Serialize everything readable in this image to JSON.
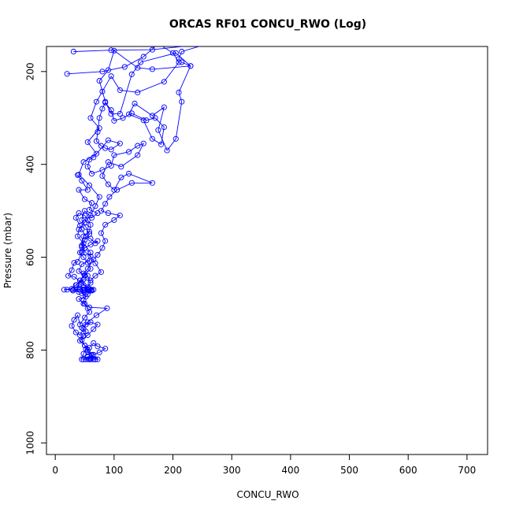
{
  "chart_data": {
    "type": "line",
    "title": "ORCAS RF01 CONCU_RWO (Log)",
    "xlabel": "CONCU_RWO",
    "ylabel": "Pressure (mbar)",
    "xlim": [
      -15,
      735
    ],
    "ylim": [
      1025,
      146
    ],
    "y_reversed": true,
    "grid": false,
    "marker": "open-circle",
    "series_color": "#0000ff",
    "x_ticks": [
      0,
      100,
      200,
      300,
      400,
      500,
      600,
      700
    ],
    "y_ticks": [
      200,
      400,
      600,
      800,
      1000
    ],
    "x_tick_labels": [
      "0",
      "100",
      "200",
      "300",
      "400",
      "500",
      "600",
      "700"
    ],
    "y_tick_labels": [
      "200",
      "400",
      "600",
      "800",
      "1000"
    ],
    "series": [
      {
        "points": [
          [
            31,
            157
          ],
          [
            95,
            154
          ],
          [
            165,
            153
          ],
          [
            260,
            140
          ],
          [
            215,
            157
          ],
          [
            210,
            173
          ],
          [
            215,
            180
          ],
          [
            230,
            188
          ],
          [
            165,
            195
          ],
          [
            140,
            192
          ],
          [
            100,
            155
          ],
          [
            90,
            197
          ],
          [
            75,
            220
          ],
          [
            85,
            265
          ],
          [
            95,
            291
          ],
          [
            110,
            291
          ],
          [
            130,
            206
          ],
          [
            145,
            180
          ],
          [
            205,
            160
          ],
          [
            230,
            188
          ],
          [
            210,
            245
          ],
          [
            215,
            265
          ],
          [
            205,
            345
          ],
          [
            190,
            370
          ],
          [
            175,
            326
          ],
          [
            185,
            277
          ],
          [
            165,
            295
          ],
          [
            135,
            269
          ],
          [
            125,
            292
          ],
          [
            150,
            305
          ],
          [
            165,
            345
          ],
          [
            180,
            357
          ],
          [
            185,
            320
          ],
          [
            170,
            300
          ],
          [
            155,
            305
          ],
          [
            130,
            290
          ],
          [
            115,
            300
          ],
          [
            100,
            306
          ],
          [
            95,
            283
          ],
          [
            85,
            267
          ],
          [
            80,
            280
          ],
          [
            75,
            300
          ],
          [
            72,
            330
          ],
          [
            70,
            350
          ],
          [
            78,
            360
          ],
          [
            85,
            365
          ],
          [
            95,
            368
          ],
          [
            110,
            355
          ],
          [
            90,
            348
          ],
          [
            65,
            385
          ],
          [
            58,
            390
          ],
          [
            55,
            405
          ],
          [
            62,
            420
          ],
          [
            80,
            412
          ],
          [
            95,
            403
          ],
          [
            100,
            380
          ],
          [
            125,
            373
          ],
          [
            140,
            360
          ],
          [
            150,
            355
          ],
          [
            140,
            380
          ],
          [
            112,
            405
          ],
          [
            90,
            395
          ],
          [
            80,
            425
          ],
          [
            90,
            443
          ],
          [
            100,
            455
          ],
          [
            112,
            428
          ],
          [
            125,
            420
          ],
          [
            165,
            440
          ],
          [
            130,
            440
          ],
          [
            105,
            455
          ],
          [
            92,
            470
          ],
          [
            85,
            485
          ],
          [
            78,
            500
          ],
          [
            90,
            505
          ],
          [
            110,
            510
          ],
          [
            100,
            520
          ],
          [
            85,
            530
          ],
          [
            78,
            548
          ],
          [
            85,
            565
          ],
          [
            80,
            580
          ],
          [
            72,
            595
          ],
          [
            65,
            605
          ],
          [
            55,
            625
          ],
          [
            48,
            635
          ],
          [
            55,
            640
          ],
          [
            60,
            655
          ],
          [
            50,
            670
          ],
          [
            40,
            670
          ],
          [
            30,
            670
          ],
          [
            20,
            670
          ],
          [
            15,
            670
          ],
          [
            28,
            668
          ],
          [
            35,
            660
          ],
          [
            48,
            648
          ],
          [
            60,
            650
          ],
          [
            68,
            640
          ],
          [
            78,
            632
          ],
          [
            68,
            613
          ],
          [
            60,
            598
          ],
          [
            52,
            590
          ],
          [
            45,
            575
          ],
          [
            48,
            555
          ],
          [
            58,
            545
          ],
          [
            60,
            530
          ],
          [
            55,
            520
          ],
          [
            50,
            510
          ],
          [
            40,
            505
          ],
          [
            35,
            515
          ],
          [
            42,
            532
          ],
          [
            45,
            540
          ],
          [
            52,
            555
          ],
          [
            60,
            560
          ],
          [
            68,
            570
          ],
          [
            72,
            565
          ],
          [
            60,
            573
          ],
          [
            50,
            580
          ],
          [
            45,
            590
          ],
          [
            38,
            610
          ],
          [
            32,
            612
          ],
          [
            28,
            628
          ],
          [
            22,
            640
          ],
          [
            32,
            642
          ],
          [
            45,
            655
          ],
          [
            55,
            665
          ],
          [
            62,
            672
          ],
          [
            55,
            680
          ],
          [
            48,
            693
          ],
          [
            50,
            700
          ],
          [
            55,
            710
          ],
          [
            58,
            718
          ],
          [
            50,
            730
          ],
          [
            42,
            745
          ],
          [
            38,
            725
          ],
          [
            32,
            735
          ],
          [
            28,
            748
          ],
          [
            35,
            762
          ],
          [
            42,
            768
          ],
          [
            48,
            755
          ],
          [
            52,
            745
          ],
          [
            60,
            740
          ],
          [
            72,
            745
          ],
          [
            65,
            755
          ],
          [
            55,
            768
          ],
          [
            45,
            778
          ],
          [
            50,
            790
          ],
          [
            58,
            795
          ],
          [
            65,
            785
          ],
          [
            72,
            792
          ],
          [
            85,
            797
          ],
          [
            75,
            805
          ],
          [
            65,
            810
          ],
          [
            55,
            815
          ],
          [
            48,
            820
          ],
          [
            52,
            820
          ],
          [
            56,
            820
          ],
          [
            60,
            820
          ],
          [
            64,
            820
          ],
          [
            68,
            820
          ],
          [
            72,
            820
          ],
          [
            62,
            812
          ],
          [
            55,
            803
          ],
          [
            52,
            798
          ],
          [
            48,
            808
          ],
          [
            45,
            820
          ]
        ]
      },
      {
        "points": [
          [
            20,
            205
          ],
          [
            80,
            200
          ],
          [
            118,
            190
          ],
          [
            150,
            168
          ],
          [
            175,
            140
          ],
          [
            200,
            160
          ],
          [
            210,
            180
          ],
          [
            185,
            222
          ],
          [
            140,
            245
          ],
          [
            110,
            240
          ],
          [
            95,
            210
          ],
          [
            80,
            243
          ],
          [
            70,
            265
          ],
          [
            60,
            300
          ],
          [
            75,
            322
          ],
          [
            55,
            352
          ],
          [
            70,
            377
          ],
          [
            48,
            395
          ],
          [
            40,
            422
          ],
          [
            58,
            445
          ],
          [
            75,
            470
          ],
          [
            68,
            490
          ],
          [
            60,
            510
          ],
          [
            50,
            525
          ],
          [
            40,
            540
          ],
          [
            38,
            555
          ],
          [
            48,
            570
          ],
          [
            60,
            590
          ],
          [
            58,
            608
          ],
          [
            45,
            615
          ],
          [
            40,
            630
          ],
          [
            50,
            640
          ],
          [
            42,
            650
          ],
          [
            36,
            660
          ],
          [
            48,
            665
          ],
          [
            56,
            670
          ],
          [
            62,
            670
          ],
          [
            57,
            672
          ],
          [
            50,
            675
          ],
          [
            45,
            678
          ],
          [
            52,
            685
          ],
          [
            40,
            690
          ],
          [
            48,
            700
          ],
          [
            58,
            708
          ],
          [
            88,
            710
          ],
          [
            70,
            725
          ],
          [
            55,
            740
          ],
          [
            45,
            752
          ],
          [
            52,
            760
          ],
          [
            48,
            770
          ],
          [
            42,
            780
          ],
          [
            50,
            790
          ],
          [
            55,
            800
          ],
          [
            62,
            810
          ],
          [
            68,
            820
          ],
          [
            60,
            818
          ],
          [
            55,
            814
          ],
          [
            58,
            820
          ]
        ]
      },
      {
        "points": [
          [
            38,
            423
          ],
          [
            45,
            435
          ],
          [
            55,
            455
          ],
          [
            40,
            455
          ],
          [
            50,
            475
          ],
          [
            62,
            483
          ],
          [
            58,
            498
          ],
          [
            72,
            505
          ],
          [
            62,
            515
          ],
          [
            50,
            500
          ],
          [
            45,
            520
          ],
          [
            52,
            535
          ],
          [
            58,
            550
          ],
          [
            50,
            563
          ],
          [
            45,
            578
          ],
          [
            42,
            590
          ],
          [
            48,
            600
          ],
          [
            55,
            612
          ],
          [
            60,
            625
          ],
          [
            50,
            638
          ],
          [
            42,
            650
          ],
          [
            48,
            660
          ],
          [
            58,
            668
          ],
          [
            65,
            670
          ],
          [
            55,
            670
          ],
          [
            48,
            670
          ],
          [
            42,
            670
          ],
          [
            38,
            668
          ],
          [
            30,
            672
          ],
          [
            40,
            675
          ],
          [
            48,
            672
          ],
          [
            60,
            672
          ]
        ]
      }
    ]
  }
}
